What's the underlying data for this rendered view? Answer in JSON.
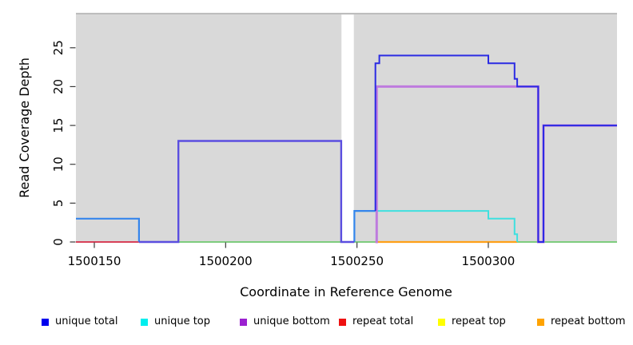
{
  "figure": {
    "xlabel": "Coordinate in Reference Genome",
    "ylabel": "Read Coverage Depth"
  },
  "legend": {
    "items": [
      {
        "label": "unique total",
        "color": "#0000EE"
      },
      {
        "label": "unique top",
        "color": "#00EEEE"
      },
      {
        "label": "unique bottom",
        "color": "#9B20D0"
      },
      {
        "label": "repeat total",
        "color": "#EE1111"
      },
      {
        "label": "repeat top",
        "color": "#FFFF00"
      },
      {
        "label": "repeat bottom",
        "color": "#FFA300"
      }
    ]
  },
  "chart_data": {
    "type": "line",
    "title": "",
    "xlabel": "Coordinate in Reference Genome",
    "ylabel": "Read Coverage Depth",
    "xlim": [
      1500143,
      1500349
    ],
    "ylim": [
      0,
      29.4
    ],
    "x_ticks": [
      1500150,
      1500200,
      1500250,
      1500300
    ],
    "y_ticks": [
      0,
      5,
      10,
      15,
      20,
      25
    ],
    "grid": false,
    "legend_position": "bottom",
    "panel_bg": "#D9D9D9",
    "panel_border": "#ADADAD",
    "masked_region": {
      "from": 1500244.1,
      "to": 1500248.8,
      "color": "#FFFFFF"
    },
    "series": [
      {
        "name": "unique total",
        "color": "#0000EE",
        "type": "step",
        "steps": [
          [
            1500143,
            3
          ],
          [
            1500167,
            0
          ],
          [
            1500182,
            13
          ],
          [
            1500244,
            0
          ],
          [
            1500249,
            4
          ],
          [
            1500257,
            23
          ],
          [
            1500258.5,
            24
          ],
          [
            1500300,
            23
          ],
          [
            1500310,
            21
          ],
          [
            1500311,
            20
          ],
          [
            1500319,
            0
          ],
          [
            1500321,
            15
          ],
          [
            1500349,
            15
          ]
        ]
      },
      {
        "name": "unique top",
        "color": "#00EEEE",
        "type": "step",
        "steps": [
          [
            1500143,
            0
          ],
          [
            1500249,
            4
          ],
          [
            1500300,
            3
          ],
          [
            1500310,
            1
          ],
          [
            1500311,
            0
          ],
          [
            1500349,
            0
          ]
        ]
      },
      {
        "name": "unique bottom",
        "color": "#9B20D0",
        "type": "step",
        "steps": [
          [
            1500143,
            0
          ],
          [
            1500182,
            13
          ],
          [
            1500244,
            0
          ],
          [
            1500257.5,
            20
          ],
          [
            1500319,
            0
          ],
          [
            1500321,
            15
          ],
          [
            1500349,
            15
          ]
        ]
      },
      {
        "name": "repeat total",
        "color": "#EE1111",
        "type": "step",
        "steps": [
          [
            1500143,
            0
          ],
          [
            1500349,
            0
          ]
        ]
      },
      {
        "name": "repeat top",
        "color": "#FFFF00",
        "type": "step",
        "steps": [
          [
            1500143,
            0
          ],
          [
            1500349,
            0
          ]
        ]
      },
      {
        "name": "repeat bottom",
        "color": "#FFA300",
        "type": "step",
        "steps": [
          [
            1500143,
            0
          ],
          [
            1500349,
            0
          ]
        ]
      }
    ],
    "visible_polylines": [
      {
        "name": "baseline-green",
        "color": "#7ECC7E",
        "width": 2,
        "points": [
          [
            1500182,
            0
          ],
          [
            1500349,
            0
          ]
        ]
      },
      {
        "name": "baseline-orange",
        "color": "#FFA018",
        "width": 2.2,
        "points": [
          [
            1500257,
            0
          ],
          [
            1500311,
            0
          ]
        ]
      },
      {
        "name": "baseline-red",
        "color": "#D84058",
        "width": 2,
        "points": [
          [
            1500143,
            0
          ],
          [
            1500167,
            0
          ]
        ]
      },
      {
        "name": "unique-top-cyan",
        "color": "#3FE0DF",
        "width": 2,
        "points": [
          [
            1500249,
            0
          ],
          [
            1500249,
            4
          ],
          [
            1500300,
            4
          ],
          [
            1500300,
            3
          ],
          [
            1500310,
            3
          ],
          [
            1500310,
            1
          ],
          [
            1500311,
            1
          ],
          [
            1500311,
            0
          ]
        ]
      },
      {
        "name": "unique-bottom-violet",
        "color": "#BE7BDE",
        "width": 3,
        "points": [
          [
            1500257,
            0
          ],
          [
            1500257.5,
            0
          ],
          [
            1500257.5,
            20
          ],
          [
            1500319,
            20
          ],
          [
            1500319,
            0
          ],
          [
            1500321,
            0
          ],
          [
            1500321,
            15
          ],
          [
            1500349,
            15
          ]
        ]
      },
      {
        "name": "left-azure",
        "color": "#3585EC",
        "width": 2.2,
        "points": [
          [
            1500143,
            3
          ],
          [
            1500167,
            3
          ],
          [
            1500167,
            0
          ]
        ]
      },
      {
        "name": "rise-azure",
        "color": "#3585EC",
        "width": 2.2,
        "points": [
          [
            1500249,
            0
          ],
          [
            1500249,
            4
          ],
          [
            1500257,
            4
          ]
        ]
      },
      {
        "name": "mid-slate",
        "color": "#5B4EE0",
        "width": 2.4,
        "points": [
          [
            1500167,
            0
          ],
          [
            1500182,
            0
          ],
          [
            1500182,
            13
          ],
          [
            1500244,
            13
          ],
          [
            1500244,
            0
          ],
          [
            1500249,
            0
          ]
        ]
      },
      {
        "name": "unique-total-blue",
        "color": "#2B2BE3",
        "width": 2,
        "points": [
          [
            1500257,
            4
          ],
          [
            1500257,
            23
          ],
          [
            1500258.5,
            23
          ],
          [
            1500258.5,
            24
          ],
          [
            1500300,
            24
          ],
          [
            1500300,
            23
          ],
          [
            1500310,
            23
          ],
          [
            1500310,
            21
          ],
          [
            1500311,
            21
          ],
          [
            1500311,
            20
          ],
          [
            1500319,
            20
          ],
          [
            1500319,
            0
          ],
          [
            1500321,
            0
          ],
          [
            1500321,
            15
          ],
          [
            1500349,
            15
          ]
        ]
      }
    ]
  }
}
